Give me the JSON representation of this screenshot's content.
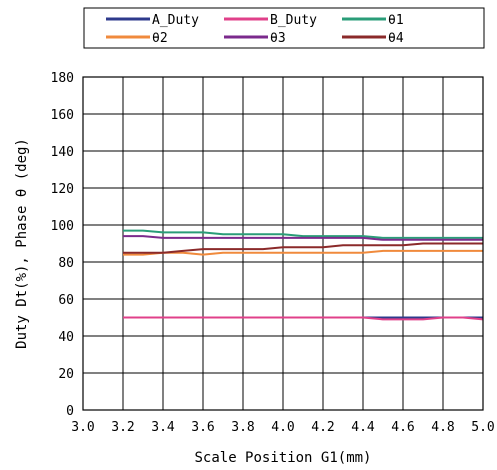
{
  "chart_data": {
    "type": "line",
    "xlabel": "Scale Position G1(mm)",
    "ylabel": "Duty Dt(%), Phase θ (deg)",
    "xlim": [
      3.0,
      5.0
    ],
    "ylim": [
      0,
      180
    ],
    "x_ticks": [
      "3.0",
      "3.2",
      "3.4",
      "3.6",
      "3.8",
      "4.0",
      "4.2",
      "4.4",
      "4.6",
      "4.8",
      "5.0"
    ],
    "y_ticks": [
      "0",
      "20",
      "40",
      "60",
      "80",
      "100",
      "120",
      "140",
      "160",
      "180"
    ],
    "grid": true,
    "legend_position": "top",
    "x": [
      3.2,
      3.3,
      3.4,
      3.5,
      3.6,
      3.7,
      3.8,
      3.9,
      4.0,
      4.1,
      4.2,
      4.3,
      4.4,
      4.5,
      4.6,
      4.7,
      4.8,
      4.9,
      5.0
    ],
    "series": [
      {
        "name": "A_Duty",
        "color": "#2e3a8c",
        "values": [
          50,
          50,
          50,
          50,
          50,
          50,
          50,
          50,
          50,
          50,
          50,
          50,
          50,
          50,
          50,
          50,
          50,
          50,
          50
        ]
      },
      {
        "name": "B_Duty",
        "color": "#e0408a",
        "values": [
          50,
          50,
          50,
          50,
          50,
          50,
          50,
          50,
          50,
          50,
          50,
          50,
          50,
          49,
          49,
          49,
          50,
          50,
          49
        ]
      },
      {
        "name": "θ1",
        "color": "#2a9d78",
        "values": [
          97,
          97,
          96,
          96,
          96,
          95,
          95,
          95,
          95,
          94,
          94,
          94,
          94,
          93,
          93,
          93,
          93,
          93,
          93
        ]
      },
      {
        "name": "θ2",
        "color": "#f08a3c",
        "values": [
          84,
          84,
          85,
          85,
          84,
          85,
          85,
          85,
          85,
          85,
          85,
          85,
          85,
          86,
          86,
          86,
          86,
          86,
          86
        ]
      },
      {
        "name": "θ3",
        "color": "#7b2a8c",
        "values": [
          94,
          94,
          93,
          93,
          93,
          93,
          93,
          93,
          93,
          93,
          93,
          93,
          93,
          92,
          92,
          92,
          92,
          92,
          92
        ]
      },
      {
        "name": "θ4",
        "color": "#8b2a2a",
        "values": [
          85,
          85,
          85,
          86,
          87,
          87,
          87,
          87,
          88,
          88,
          88,
          89,
          89,
          89,
          89,
          90,
          90,
          90,
          90
        ]
      }
    ]
  }
}
